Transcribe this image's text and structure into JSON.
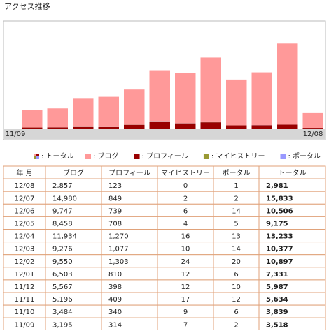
{
  "title": "アクセス推移",
  "chart_data": {
    "type": "bar",
    "stacked": true,
    "categories": [
      "11/09",
      null,
      null,
      null,
      null,
      null,
      null,
      null,
      null,
      null,
      null,
      "12/08"
    ],
    "series": [
      {
        "name": ": ブログ",
        "color": "#ff9999",
        "values": [
          3195,
          3484,
          5196,
          5567,
          6503,
          9550,
          9276,
          11934,
          8458,
          9747,
          14980,
          2857
        ]
      },
      {
        "name": ": プロフィール",
        "color": "#990000",
        "values": [
          314,
          340,
          409,
          398,
          810,
          1303,
          1077,
          1270,
          708,
          739,
          849,
          123
        ]
      },
      {
        "name": ": マイヒストリー",
        "color": "#999933",
        "values": [
          7,
          9,
          17,
          12,
          12,
          24,
          10,
          16,
          4,
          6,
          2,
          0
        ]
      },
      {
        "name": ": ポータル",
        "color": "#9999ff",
        "values": [
          2,
          6,
          12,
          10,
          6,
          20,
          14,
          13,
          5,
          14,
          2,
          1
        ]
      }
    ],
    "total_name": ": トータル",
    "ylim": [
      0,
      20000
    ]
  },
  "table": {
    "headers": [
      "年 月",
      "ブログ",
      "プロフィール",
      "マイヒストリー",
      "ポータル",
      "トータル"
    ],
    "rows": [
      [
        "12/08",
        "2,857",
        "123",
        "0",
        "1",
        "2,981"
      ],
      [
        "12/07",
        "14,980",
        "849",
        "2",
        "2",
        "15,833"
      ],
      [
        "12/06",
        "9,747",
        "739",
        "6",
        "14",
        "10,506"
      ],
      [
        "12/05",
        "8,458",
        "708",
        "4",
        "5",
        "9,175"
      ],
      [
        "12/04",
        "11,934",
        "1,270",
        "16",
        "13",
        "13,233"
      ],
      [
        "12/03",
        "9,276",
        "1,077",
        "10",
        "14",
        "10,377"
      ],
      [
        "12/02",
        "9,550",
        "1,303",
        "24",
        "20",
        "10,897"
      ],
      [
        "12/01",
        "6,503",
        "810",
        "12",
        "6",
        "7,331"
      ],
      [
        "11/12",
        "5,567",
        "398",
        "12",
        "10",
        "5,987"
      ],
      [
        "11/11",
        "5,196",
        "409",
        "17",
        "12",
        "5,634"
      ],
      [
        "11/10",
        "3,484",
        "340",
        "9",
        "6",
        "3,839"
      ],
      [
        "11/09",
        "3,195",
        "314",
        "7",
        "2",
        "3,518"
      ]
    ]
  }
}
